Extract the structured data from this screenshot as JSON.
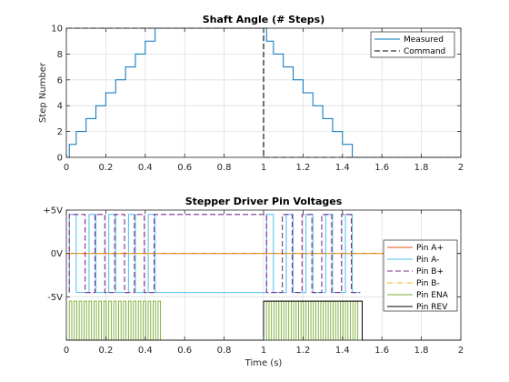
{
  "chart_data": [
    {
      "type": "line",
      "title": "Shaft Angle (# Steps)",
      "xlabel": "",
      "ylabel": "Step Number",
      "xlim": [
        0,
        2
      ],
      "ylim": [
        0,
        10
      ],
      "xticks": [
        0,
        0.2,
        0.4,
        0.6,
        0.8,
        1,
        1.2,
        1.4,
        1.6,
        1.8,
        2
      ],
      "xtick_labels": [
        "0",
        "0.2",
        "0.4",
        "0.6",
        "0.8",
        "1",
        "1.2",
        "1.4",
        "1.6",
        "1.8",
        "2"
      ],
      "yticks": [
        0,
        2,
        4,
        6,
        8,
        10
      ],
      "ytick_labels": [
        "0",
        "2",
        "4",
        "6",
        "8",
        "10"
      ],
      "grid": true,
      "legend": "top-right",
      "series": [
        {
          "name": "Measured",
          "color": "#0072bd",
          "style": "solid",
          "x": [
            0,
            0.015,
            0.015,
            0.05,
            0.05,
            0.1,
            0.1,
            0.15,
            0.15,
            0.2,
            0.2,
            0.25,
            0.25,
            0.3,
            0.3,
            0.35,
            0.35,
            0.4,
            0.4,
            0.45,
            0.45,
            0.49,
            0.49,
            1.0,
            1.0,
            1.015,
            1.015,
            1.05,
            1.05,
            1.1,
            1.1,
            1.15,
            1.15,
            1.2,
            1.2,
            1.25,
            1.25,
            1.3,
            1.3,
            1.35,
            1.35,
            1.4,
            1.4,
            1.45,
            1.45,
            1.49,
            1.49,
            2.0
          ],
          "y": [
            0,
            0,
            1,
            1,
            2,
            2,
            3,
            3,
            4,
            4,
            5,
            5,
            6,
            6,
            7,
            7,
            8,
            8,
            9,
            9,
            10,
            10,
            10,
            10,
            10,
            10,
            9,
            9,
            8,
            8,
            7,
            7,
            6,
            6,
            5,
            5,
            4,
            4,
            3,
            3,
            2,
            2,
            1,
            1,
            0,
            0,
            0,
            0
          ]
        },
        {
          "name": "Command",
          "color": "#000000",
          "style": "dashed",
          "x": [
            0,
            1,
            1,
            2
          ],
          "y": [
            10,
            10,
            0,
            0
          ]
        }
      ]
    },
    {
      "type": "line",
      "title": "Stepper Driver Pin Voltages",
      "xlabel": "Time (s)",
      "ylabel": "",
      "xlim": [
        0,
        2
      ],
      "ylim": [
        -10,
        5
      ],
      "xticks": [
        0,
        0.2,
        0.4,
        0.6,
        0.8,
        1,
        1.2,
        1.4,
        1.6,
        1.8,
        2
      ],
      "xtick_labels": [
        "0",
        "0.2",
        "0.4",
        "0.6",
        "0.8",
        "1",
        "1.2",
        "1.4",
        "1.6",
        "1.8",
        "2"
      ],
      "yticks": [
        5,
        0,
        -5
      ],
      "ytick_labels": [
        "+5V",
        "0V",
        "-5V"
      ],
      "grid": true,
      "legend": "right",
      "series": [
        {
          "name": "Pin A+",
          "color": "#d95319",
          "style": "solid",
          "x": [
            0,
            2
          ],
          "y": [
            0,
            0
          ]
        },
        {
          "name": "Pin A-",
          "color": "#4dbeee",
          "style": "solid",
          "x": [
            0.015,
            0.015,
            0.05,
            0.05,
            0.115,
            0.115,
            0.15,
            0.15,
            0.215,
            0.215,
            0.25,
            0.25,
            0.315,
            0.315,
            0.35,
            0.35,
            0.415,
            0.415,
            0.45,
            0.45,
            0.49,
            1.015,
            1.015,
            1.05,
            1.05,
            1.115,
            1.115,
            1.15,
            1.15,
            1.215,
            1.215,
            1.25,
            1.25,
            1.315,
            1.315,
            1.35,
            1.35,
            1.415,
            1.415,
            1.45,
            1.45,
            1.49
          ],
          "y": [
            -4.5,
            4.5,
            4.5,
            -4.5,
            -4.5,
            4.5,
            4.5,
            -4.5,
            -4.5,
            4.5,
            4.5,
            -4.5,
            -4.5,
            4.5,
            4.5,
            -4.5,
            -4.5,
            4.5,
            4.5,
            -4.5,
            -4.5,
            -4.5,
            4.5,
            4.5,
            -4.5,
            -4.5,
            4.5,
            4.5,
            -4.5,
            -4.5,
            4.5,
            4.5,
            -4.5,
            -4.5,
            4.5,
            4.5,
            -4.5,
            -4.5,
            4.5,
            4.5,
            -4.5,
            -4.5
          ]
        },
        {
          "name": "Pin B+",
          "color": "#7e2f8e",
          "style": "dashed",
          "x": [
            0.015,
            0.015,
            0.095,
            0.095,
            0.145,
            0.145,
            0.195,
            0.195,
            0.245,
            0.245,
            0.295,
            0.295,
            0.345,
            0.345,
            0.395,
            0.395,
            0.445,
            0.445,
            0.49,
            1.015,
            1.015,
            1.095,
            1.095,
            1.145,
            1.145,
            1.195,
            1.195,
            1.245,
            1.245,
            1.295,
            1.295,
            1.345,
            1.345,
            1.395,
            1.395,
            1.445,
            1.445,
            1.49
          ],
          "y": [
            -4.5,
            4.5,
            4.5,
            -4.5,
            -4.5,
            4.5,
            4.5,
            -4.5,
            -4.5,
            4.5,
            4.5,
            -4.5,
            -4.5,
            4.5,
            4.5,
            -4.5,
            -4.5,
            4.5,
            4.5,
            4.5,
            -4.5,
            -4.5,
            4.5,
            4.5,
            -4.5,
            -4.5,
            4.5,
            4.5,
            -4.5,
            -4.5,
            4.5,
            4.5,
            -4.5,
            -4.5,
            4.5,
            4.5,
            -4.5,
            -4.5
          ]
        },
        {
          "name": "Pin B-",
          "color": "#edb120",
          "style": "dashdot",
          "x": [
            0,
            2
          ],
          "y": [
            0,
            0
          ]
        },
        {
          "name": "Pin ENA",
          "color": "#77ac30",
          "style": "solid",
          "period": 0.025,
          "intervals": [
            [
              0.015,
              0.49
            ],
            [
              1.015,
              1.49
            ]
          ],
          "high": -5.5,
          "low": -10
        },
        {
          "name": "Pin REV",
          "color": "#000000",
          "style": "solid",
          "x": [
            0,
            1,
            1,
            1.5,
            1.5,
            2
          ],
          "y": [
            -10,
            -10,
            -5.5,
            -5.5,
            -10,
            -10
          ]
        }
      ]
    }
  ]
}
